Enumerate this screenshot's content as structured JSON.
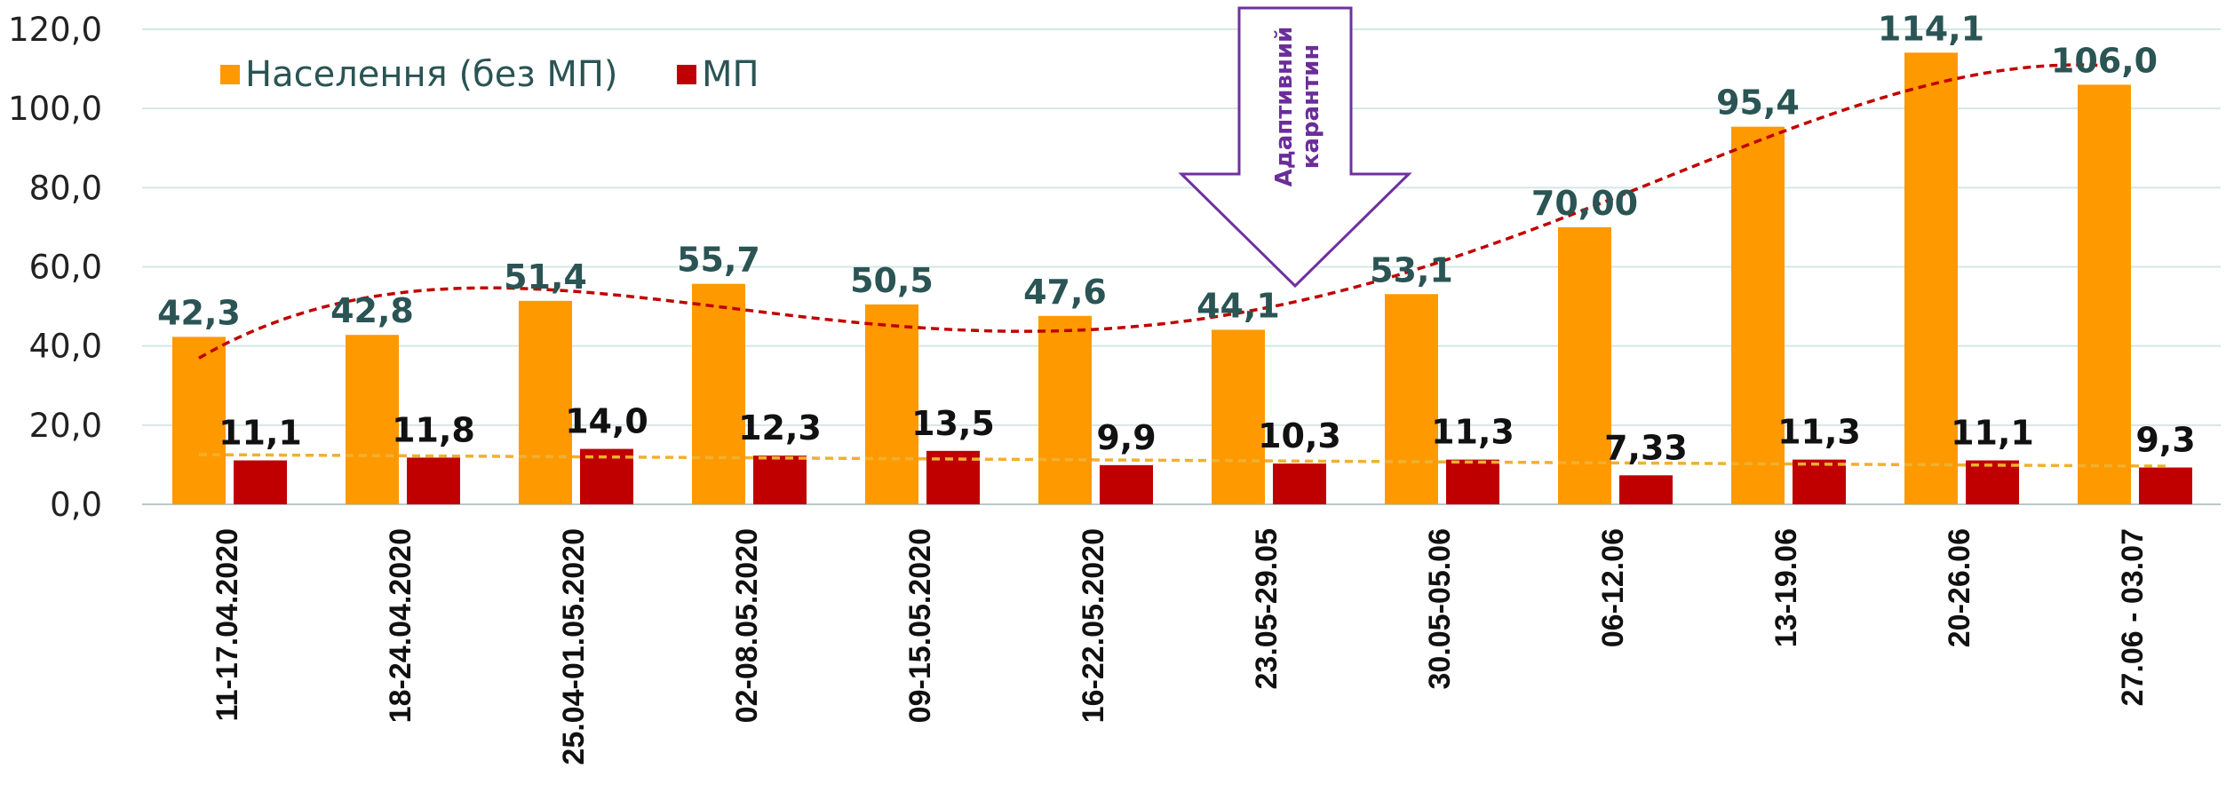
{
  "chart_data": {
    "type": "bar",
    "categories": [
      "11-17.04.2020",
      "18-24.04.2020",
      "25.04-01.05.2020",
      "02-08.05.2020",
      "09-15.05.2020",
      "16-22.05.2020",
      "23.05-29.05",
      "30.05-05.06",
      "06-12.06",
      "13-19.06",
      "20-26.06",
      "27.06 - 03.07"
    ],
    "series": [
      {
        "name": "Населення (без МП)",
        "color": "#ff9900",
        "values": [
          42.3,
          42.8,
          51.4,
          55.7,
          50.5,
          47.6,
          44.1,
          53.1,
          70.0,
          95.4,
          114.1,
          106.0
        ],
        "labels": [
          "42,3",
          "42,8",
          "51,4",
          "55,7",
          "50,5",
          "47,6",
          "44,1",
          "53,1",
          "70,00",
          "95,4",
          "114,1",
          "106,0"
        ],
        "trendline": {
          "type": "polynomial",
          "color": "#c00000",
          "style": "dashed"
        }
      },
      {
        "name": "МП",
        "color": "#c00000",
        "values": [
          11.1,
          11.8,
          14.0,
          12.3,
          13.5,
          9.9,
          10.3,
          11.3,
          7.33,
          11.3,
          11.1,
          9.3
        ],
        "labels": [
          "11,1",
          "11,8",
          "14,0",
          "12,3",
          "13,5",
          "9,9",
          "10,3",
          "11,3",
          "7,33",
          "11,3",
          "11,1",
          "9,3"
        ],
        "trendline": {
          "type": "linear",
          "color": "#f0b030",
          "style": "dashed"
        }
      }
    ],
    "y_ticks": [
      "0,0",
      "20,0",
      "40,0",
      "60,0",
      "80,0",
      "100,0",
      "120,0"
    ],
    "ylim": [
      0,
      120
    ],
    "grid": true,
    "legend": "top-left",
    "annotation": {
      "lines": [
        "Адаптивний",
        "карантин"
      ],
      "shape": "down-arrow",
      "color": "#7030a0",
      "category": "23.05-29.05"
    }
  }
}
